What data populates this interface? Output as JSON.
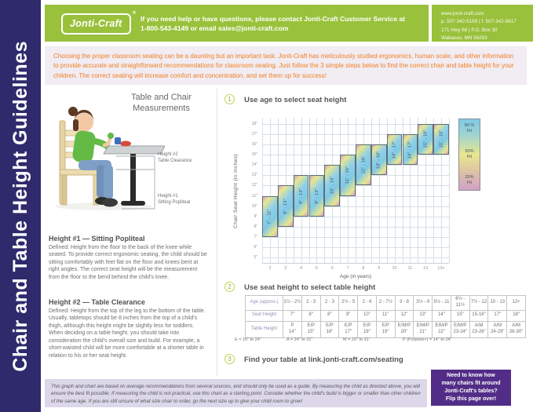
{
  "sidebar": {
    "title": "Chair and Table Height Guidelines"
  },
  "header": {
    "logo_text": "Jonti-Craft",
    "logo_reg": "®",
    "help_line1": "If you need help or have questions, please contact Jonti-Craft Customer Service at",
    "help_line2": "1-800-543-4149 or email sales@jonti-craft.com",
    "contact": {
      "website": "www.jonti-craft.com",
      "phone_fax": "p. 507-342-5169  |  f. 507-342-5617",
      "address1": "171 Hwy 68  |  P.O. Box 30",
      "address2": "Wabasso, MN 56293"
    },
    "bar_color": "#99c13b"
  },
  "intro": {
    "text": "Choosing the proper classroom seating can be a daunting but an important task. Jonti-Craft has meticulously studied ergonomics, human scale, and other information to provide accurate and straightforward recommendations for classroom seating. Just follow the 3 simple steps below to find the correct chair and table height for your children. The correct seating will increase comfort and concentration, and set them up for success!",
    "text_color": "#ef8023"
  },
  "measurements": {
    "title": "Table and Chair\nMeasurements",
    "label_height2": "Height #2\nTable Clearance",
    "label_height1": "Height #1\nSitting Popliteal",
    "height1_heading": "Height #1 — Sitting Popliteal",
    "height1_body": "Defined: Height from the floor to the back of the knee while seated. To provide correct ergonomic seating, the child should be sitting comfortably with feet flat on the floor and knees bent at right angles.  The correct seat height will be the measurement from the floor to the bend behind the child's knee.",
    "height2_heading": "Height #2 — Table Clearance",
    "height2_body": "Defined: Height from the top of the leg to the bottom of the table. Usually, tabletops should be 8 inches from the top of a child's thigh, although this height might be slightly less for toddlers. When deciding on a table height,  you should take into consideration the child's overall size and build. For example, a short-waisted child will be more comfortable at a shorter table in relation to his or her seat height."
  },
  "steps": [
    {
      "number": "1",
      "title": "Use age to select seat height"
    },
    {
      "number": "2",
      "title": "Use seat height to select table height"
    },
    {
      "number": "3",
      "title": "Find your table at link.jonti-craft.com/seating"
    }
  ],
  "chart_data": {
    "type": "bar",
    "variant": "floating-range-columns",
    "title": "Use age to select seat height",
    "xlabel": "Age (in years)",
    "ylabel": "Chair Seat Height  (in inches)",
    "categories": [
      "2",
      "3",
      "4",
      "5",
      "6",
      "7",
      "8",
      "9",
      "10",
      "11",
      "12",
      "13+"
    ],
    "series": [
      {
        "name": "Chair seat height range by age",
        "ranges": [
          [
            7,
            11
          ],
          [
            8,
            12
          ],
          [
            9,
            13
          ],
          [
            9,
            13
          ],
          [
            10,
            14
          ],
          [
            11,
            15
          ],
          [
            12,
            16
          ],
          [
            13,
            16
          ],
          [
            14,
            17
          ],
          [
            14,
            17
          ],
          [
            15,
            18
          ],
          [
            15,
            18
          ]
        ],
        "labels": [
          "7\" - 11\"",
          "8\" - 12\"",
          "9\" - 13\"",
          "9\" - 13\"",
          "10\" - 14\"",
          "11\" - 15\"",
          "12\" - 16\"",
          "13\" - 16\"",
          "14\" - 17\"",
          "14\" - 17\"",
          "15\" - 18\"",
          "15\" - 18\""
        ]
      }
    ],
    "ylim": [
      4.4,
      18.6
    ],
    "yticks": [
      "18\"",
      "17\"",
      "16\"",
      "15\"",
      "14\"",
      "13\"",
      "12\"",
      "11\"",
      "10\"",
      "9\"",
      "8\"",
      "7\"",
      "6\"",
      "5\""
    ],
    "grid": true,
    "legend_position": "right",
    "legend": [
      {
        "label": "80 %\nFit",
        "color": "#85cde9"
      },
      {
        "label": "50%\nFit",
        "color": "#e9e68e"
      },
      {
        "label": "20%\nFit",
        "color": "#d2a0c8"
      }
    ]
  },
  "table": {
    "row_headers": [
      "Age (approx.)",
      "Seat Height",
      "Table Height"
    ],
    "ages": [
      "1½ - 2½",
      "2 - 3",
      "2 - 3",
      "2½ - 5",
      "2 - 6",
      "2 - 7½",
      "3 - 8",
      "3½ - 9",
      "5½ - 11",
      "6½ - 11½",
      "7½ - 12",
      "10 - 13",
      "12+"
    ],
    "seat_heights": [
      "7\"",
      "8\"",
      "8\"",
      "9\"",
      "10\"",
      "11\"",
      "12\"",
      "13\"",
      "14\"",
      "15\"",
      "15-16\"",
      "17\"",
      "18\""
    ],
    "table_heights": [
      [
        "P",
        "14\""
      ],
      [
        "E/P",
        "15\""
      ],
      [
        "E/P",
        "16\""
      ],
      [
        "E/P",
        "17\""
      ],
      [
        "E/P",
        "18\""
      ],
      [
        "E/P",
        "19\""
      ],
      [
        "E/M/P",
        "20\""
      ],
      [
        "E/M/P",
        "21\""
      ],
      [
        "E/M/P",
        "22\""
      ],
      [
        "E/M/P",
        "23-24\""
      ],
      [
        "A/M",
        "23-26\""
      ],
      [
        "A/M",
        "24-29\""
      ],
      [
        "A/M",
        "26-30\""
      ]
    ],
    "footnotes": [
      "E = 15\" to 24\"",
      "A = 24\" to 31\"",
      "M = 20\" to 31\"",
      "P (Purpose+) = 14\" to 24\""
    ]
  },
  "promo": {
    "text": "Need to know how\nmany chairs fit around\nJonti-Craft's tables?\nFlip this page over!",
    "bg_color": "#522d87"
  },
  "disclaimer": {
    "text": "This graph and chart are based on average recommendations from several sources, and should only be used as a guide. By measuring the child as directed above, you will ensure the best fit possible. If measuring the child is not practical, use this chart as a starting point. Consider whether the child's build is bigger or smaller than other children of the same age. If you are still unsure of what size chair to order, go the next size up to give your child room to grow!"
  }
}
